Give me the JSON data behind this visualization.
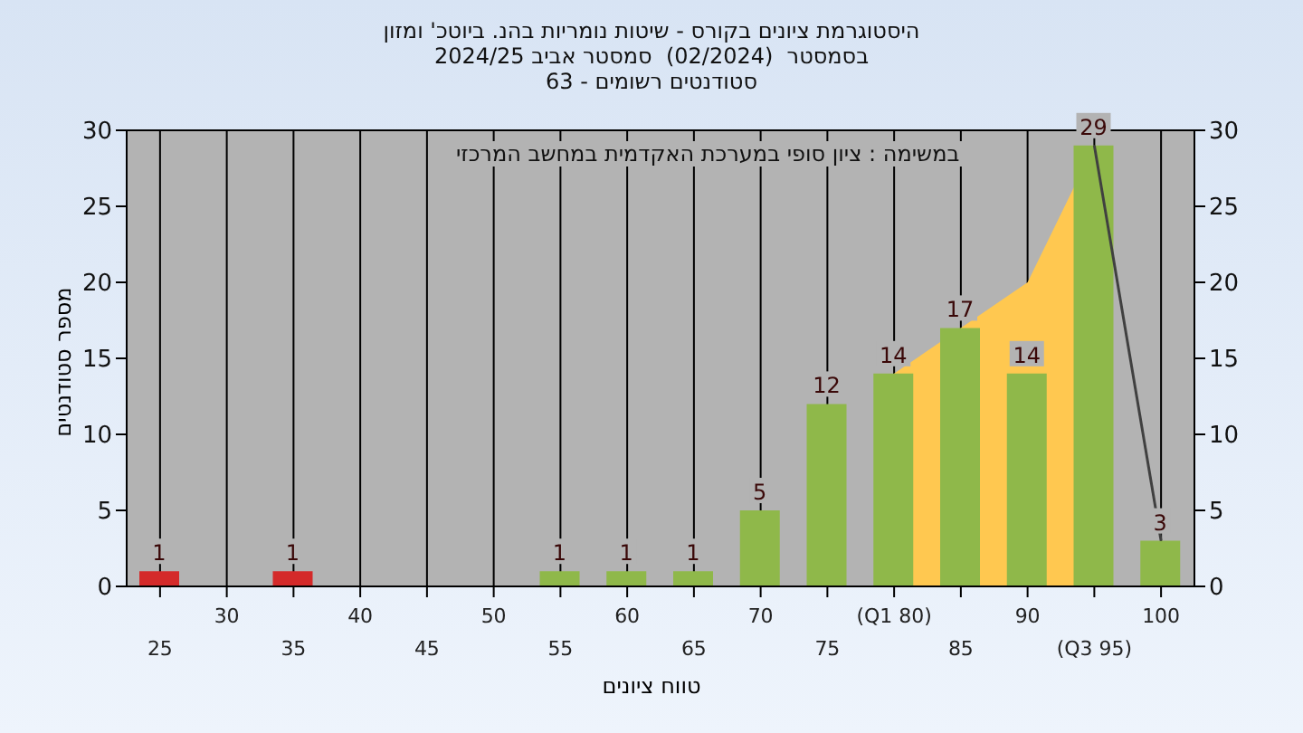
{
  "chart_data": {
    "type": "bar",
    "title": "היסטוגרמת ציונים בקורס - שיטות נומריות בהנ. ביוטכ' ומזון",
    "subtitle": "בסמסטר  (02/2024)  סמסטר אביב 2024/25\nסטודנטים רשומים - 63",
    "xlabel": "טווח ציונים",
    "ylabel": "מספר סטודנטים",
    "annotations": [
      "במשימה : ציון סופי במערכת האקדמית במחשב המרכזי"
    ],
    "categories": [
      "25",
      "30",
      "35",
      "40",
      "45",
      "50",
      "55",
      "60",
      "65",
      "70",
      "75",
      "(Q1 80)",
      "85",
      "90",
      "(Q3 95)",
      "100"
    ],
    "series": [
      {
        "type": "area",
        "color": "#ffc850",
        "values": [
          null,
          null,
          null,
          null,
          null,
          null,
          null,
          null,
          null,
          null,
          null,
          14,
          null,
          20,
          29,
          null
        ]
      },
      {
        "colors": [
          "#d42a2a",
          "#8fb84a",
          "#d42a2a",
          "#8fb84a",
          "#8fb84a",
          "#8fb84a",
          "#8fb84a",
          "#8fb84a",
          "#8fb84a",
          "#8fb84a",
          "#8fb84a",
          "#8fb84a",
          "#8fb84a",
          "#8fb84a",
          "#8fb84a",
          "#8fb84a"
        ],
        "values": [
          1,
          0,
          1,
          0,
          0,
          0,
          1,
          1,
          1,
          5,
          12,
          14,
          17,
          14,
          29,
          3
        ],
        "value_labels": [
          "1",
          null,
          "1",
          null,
          null,
          null,
          "1",
          "1",
          "1",
          "5",
          "12",
          "14",
          "17",
          "14",
          "29",
          "3"
        ]
      },
      {
        "type": "line",
        "color": "#404040",
        "values": [
          null,
          null,
          null,
          null,
          null,
          null,
          null,
          null,
          null,
          null,
          null,
          null,
          null,
          null,
          29,
          3
        ]
      }
    ],
    "ylim": [
      0,
      30
    ],
    "yticks": [
      0,
      5,
      10,
      15,
      20,
      25,
      30
    ],
    "y2lim": [
      0,
      30
    ],
    "y2ticks": [
      0,
      5,
      10,
      15,
      20,
      25,
      30
    ],
    "grid": true,
    "legend": false
  }
}
